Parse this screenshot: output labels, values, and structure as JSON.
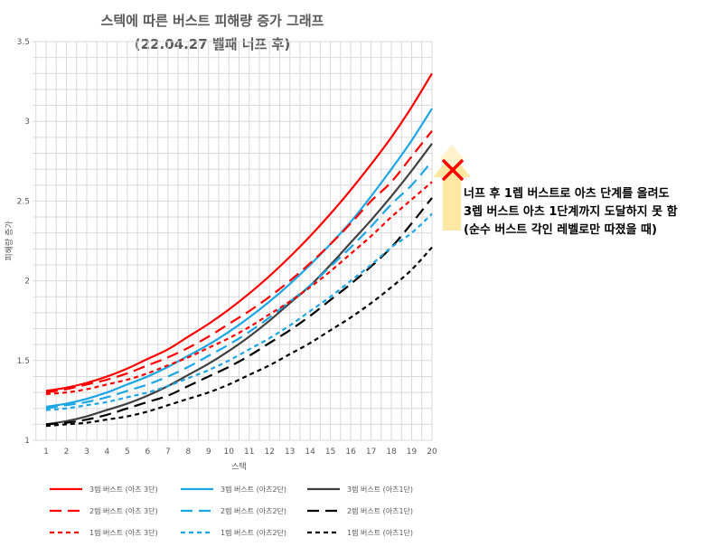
{
  "chart_data": {
    "type": "line",
    "title": [
      "스텍에 따른 버스트 피해량 증가 그래프",
      "(22.04.27 밸패 너프 후)"
    ],
    "xlabel": "스택",
    "ylabel": "피해량 증가",
    "x": [
      1,
      2,
      3,
      4,
      5,
      6,
      7,
      8,
      9,
      10,
      11,
      12,
      13,
      14,
      15,
      16,
      17,
      18,
      19,
      20
    ],
    "xlim": [
      1,
      20
    ],
    "ylim": [
      1,
      3.5
    ],
    "yticks": [
      "1",
      "1.5",
      "2",
      "2.5",
      "3",
      "3.5"
    ],
    "grid": true,
    "legend_position": "bottom",
    "series": [
      {
        "name": "3렙 버스트 (아츠 3단)",
        "color": "#ff0000",
        "dash": "solid",
        "values": [
          1.31,
          1.33,
          1.36,
          1.4,
          1.45,
          1.51,
          1.57,
          1.65,
          1.73,
          1.82,
          1.92,
          2.03,
          2.15,
          2.28,
          2.42,
          2.57,
          2.73,
          2.9,
          3.09,
          3.3
        ]
      },
      {
        "name": "3렙 버스트 (아츠2단)",
        "color": "#1ca6e6",
        "dash": "solid",
        "values": [
          1.21,
          1.23,
          1.26,
          1.3,
          1.35,
          1.4,
          1.46,
          1.53,
          1.6,
          1.68,
          1.77,
          1.87,
          1.98,
          2.1,
          2.23,
          2.37,
          2.53,
          2.7,
          2.88,
          3.08
        ]
      },
      {
        "name": "3렙 버스트 (아츠1단)",
        "color": "#404040",
        "dash": "solid",
        "values": [
          1.1,
          1.12,
          1.15,
          1.19,
          1.23,
          1.28,
          1.34,
          1.41,
          1.48,
          1.56,
          1.65,
          1.75,
          1.86,
          1.97,
          2.1,
          2.24,
          2.38,
          2.53,
          2.69,
          2.86
        ]
      },
      {
        "name": "2렙 버스트 (아츠 3단)",
        "color": "#ff0000",
        "dash": "long",
        "values": [
          1.3,
          1.32,
          1.35,
          1.38,
          1.42,
          1.47,
          1.52,
          1.58,
          1.65,
          1.73,
          1.81,
          1.9,
          2.0,
          2.11,
          2.23,
          2.36,
          2.5,
          2.62,
          2.78,
          2.94
        ]
      },
      {
        "name": "2렙 버스트 (아츠2단)",
        "color": "#1ca6e6",
        "dash": "long",
        "values": [
          1.2,
          1.22,
          1.24,
          1.27,
          1.31,
          1.35,
          1.4,
          1.46,
          1.53,
          1.6,
          1.68,
          1.77,
          1.87,
          1.97,
          2.09,
          2.21,
          2.34,
          2.48,
          2.6,
          2.75
        ]
      },
      {
        "name": "2렙 버스트 (아츠1단)",
        "color": "#000000",
        "dash": "long",
        "values": [
          1.1,
          1.11,
          1.13,
          1.16,
          1.2,
          1.24,
          1.28,
          1.34,
          1.4,
          1.46,
          1.53,
          1.61,
          1.69,
          1.78,
          1.88,
          1.98,
          2.09,
          2.21,
          2.36,
          2.52
        ]
      },
      {
        "name": "1렙 버스트 (아츠 3단)",
        "color": "#ff0000",
        "dash": "short",
        "values": [
          1.29,
          1.3,
          1.32,
          1.35,
          1.38,
          1.42,
          1.47,
          1.52,
          1.58,
          1.64,
          1.71,
          1.79,
          1.87,
          1.96,
          2.06,
          2.17,
          2.28,
          2.4,
          2.51,
          2.62
        ]
      },
      {
        "name": "1렙 버스트 (아츠2단)",
        "color": "#1ca6e6",
        "dash": "short",
        "values": [
          1.19,
          1.2,
          1.22,
          1.24,
          1.27,
          1.3,
          1.34,
          1.39,
          1.44,
          1.5,
          1.57,
          1.64,
          1.72,
          1.81,
          1.9,
          2.0,
          2.1,
          2.21,
          2.3,
          2.42
        ]
      },
      {
        "name": "1렙 버스트 (아츠1단)",
        "color": "#000000",
        "dash": "short",
        "values": [
          1.09,
          1.1,
          1.11,
          1.13,
          1.15,
          1.18,
          1.22,
          1.26,
          1.3,
          1.35,
          1.41,
          1.47,
          1.54,
          1.61,
          1.69,
          1.77,
          1.86,
          1.96,
          2.07,
          2.21
        ]
      }
    ],
    "annotation": {
      "lines": [
        "너프 후 1렙 버스트로 아츠 단계를 올려도",
        "3렙 버스트 아츠 1단계까지 도달하지 못 함",
        "(순수 버스트 각인 레벨로만 따졌을 때)"
      ],
      "marker": "red-x",
      "arrow_color": "#ffe699"
    }
  }
}
